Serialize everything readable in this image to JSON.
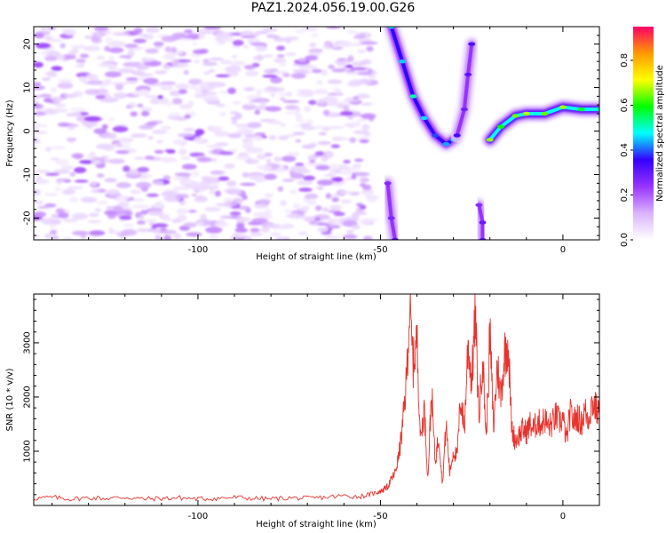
{
  "title": "PAZ1.2024.056.19.00.G26",
  "chart_data": [
    {
      "type": "heatmap",
      "xlabel": "Height of straight line (km)",
      "ylabel": "Frequency (Hz)",
      "xlim": [
        -145,
        10
      ],
      "ylim": [
        -25,
        24
      ],
      "x_ticks": [
        -100,
        -50,
        0
      ],
      "y_ticks": [
        -20,
        -10,
        0,
        10,
        20
      ],
      "colorbar": {
        "label": "Normalized spectral amplitude",
        "range": [
          0.0,
          0.95
        ],
        "ticks": [
          0.0,
          0.2,
          0.4,
          0.6,
          0.8
        ],
        "colors": [
          "#ffffff",
          "#d9b3ff",
          "#9933ff",
          "#3300ff",
          "#00ffff",
          "#00ff00",
          "#ffff00",
          "#ff9900",
          "#ff0066"
        ]
      },
      "features": [
        {
          "name": "noise region",
          "x_range": [
            -145,
            -52
          ],
          "y_range": [
            -25,
            24
          ],
          "amplitude": [
            0.0,
            0.25
          ]
        },
        {
          "name": "descending branch",
          "points": [
            [
              -47,
              24
            ],
            [
              -44,
              16
            ],
            [
              -41,
              8
            ],
            [
              -38,
              3
            ],
            [
              -35,
              -1
            ],
            [
              -32,
              -3
            ],
            [
              -30,
              -2
            ]
          ],
          "amplitude": 0.45
        },
        {
          "name": "ascending branch",
          "points": [
            [
              -29,
              -1
            ],
            [
              -27,
              5
            ],
            [
              -26,
              13
            ],
            [
              -25,
              20
            ]
          ],
          "amplitude": 0.3
        },
        {
          "name": "main signal",
          "points": [
            [
              -20,
              -2
            ],
            [
              -17,
              1
            ],
            [
              -13,
              3.5
            ],
            [
              -10,
              4
            ],
            [
              -5,
              4
            ],
            [
              0,
              5.5
            ],
            [
              5,
              5
            ],
            [
              10,
              5
            ]
          ],
          "amplitude": 0.6
        },
        {
          "name": "lower trace",
          "points": [
            [
              -48,
              -12
            ],
            [
              -47,
              -20
            ],
            [
              -46,
              -25
            ]
          ],
          "amplitude": 0.3
        },
        {
          "name": "lower blob",
          "points": [
            [
              -23,
              -17
            ],
            [
              -22,
              -21
            ],
            [
              -22,
              -25
            ]
          ],
          "amplitude": 0.3
        }
      ]
    },
    {
      "type": "line",
      "xlabel": "Height of straight line (km)",
      "ylabel": "SNR (10 * v/v)",
      "xlim": [
        -145,
        10
      ],
      "ylim": [
        0,
        3900
      ],
      "x_ticks": [
        -100,
        -50,
        0
      ],
      "y_ticks": [
        1000,
        2000,
        3000
      ],
      "color": "#e8322c",
      "x": [
        -145,
        -140,
        -135,
        -130,
        -125,
        -120,
        -115,
        -110,
        -105,
        -100,
        -95,
        -90,
        -85,
        -80,
        -75,
        -70,
        -65,
        -60,
        -56,
        -53,
        -51,
        -50,
        -49,
        -48,
        -47,
        -46,
        -45,
        -44,
        -43,
        -42,
        -41,
        -40,
        -39,
        -38,
        -37,
        -36,
        -35,
        -34,
        -33,
        -32,
        -31,
        -30,
        -29,
        -28,
        -27,
        -26,
        -25,
        -24,
        -23,
        -22,
        -21,
        -20,
        -19,
        -18,
        -17,
        -16,
        -15,
        -14,
        -13,
        -12,
        -11,
        -10,
        -9,
        -8,
        -7,
        -6,
        -5,
        -4,
        -3,
        -2,
        -1,
        0,
        1,
        2,
        3,
        4,
        5,
        6,
        7,
        8,
        9,
        10
      ],
      "y": [
        130,
        150,
        120,
        140,
        130,
        150,
        120,
        130,
        140,
        120,
        130,
        150,
        130,
        120,
        140,
        130,
        150,
        180,
        160,
        200,
        240,
        260,
        300,
        350,
        480,
        600,
        900,
        1400,
        2200,
        3600,
        2600,
        3100,
        1200,
        1800,
        500,
        2100,
        800,
        1300,
        400,
        1500,
        600,
        1000,
        900,
        2000,
        1400,
        3000,
        2300,
        3500,
        1600,
        2800,
        1200,
        3200,
        1400,
        2600,
        2000,
        2800,
        3000,
        1400,
        1200,
        1300,
        1400,
        1350,
        1500,
        1400,
        1550,
        1500,
        1600,
        1450,
        1500,
        1650,
        1550,
        1600,
        1200,
        1700,
        1550,
        1650,
        1500,
        1750,
        1600,
        1900,
        1800,
        1650
      ]
    }
  ]
}
